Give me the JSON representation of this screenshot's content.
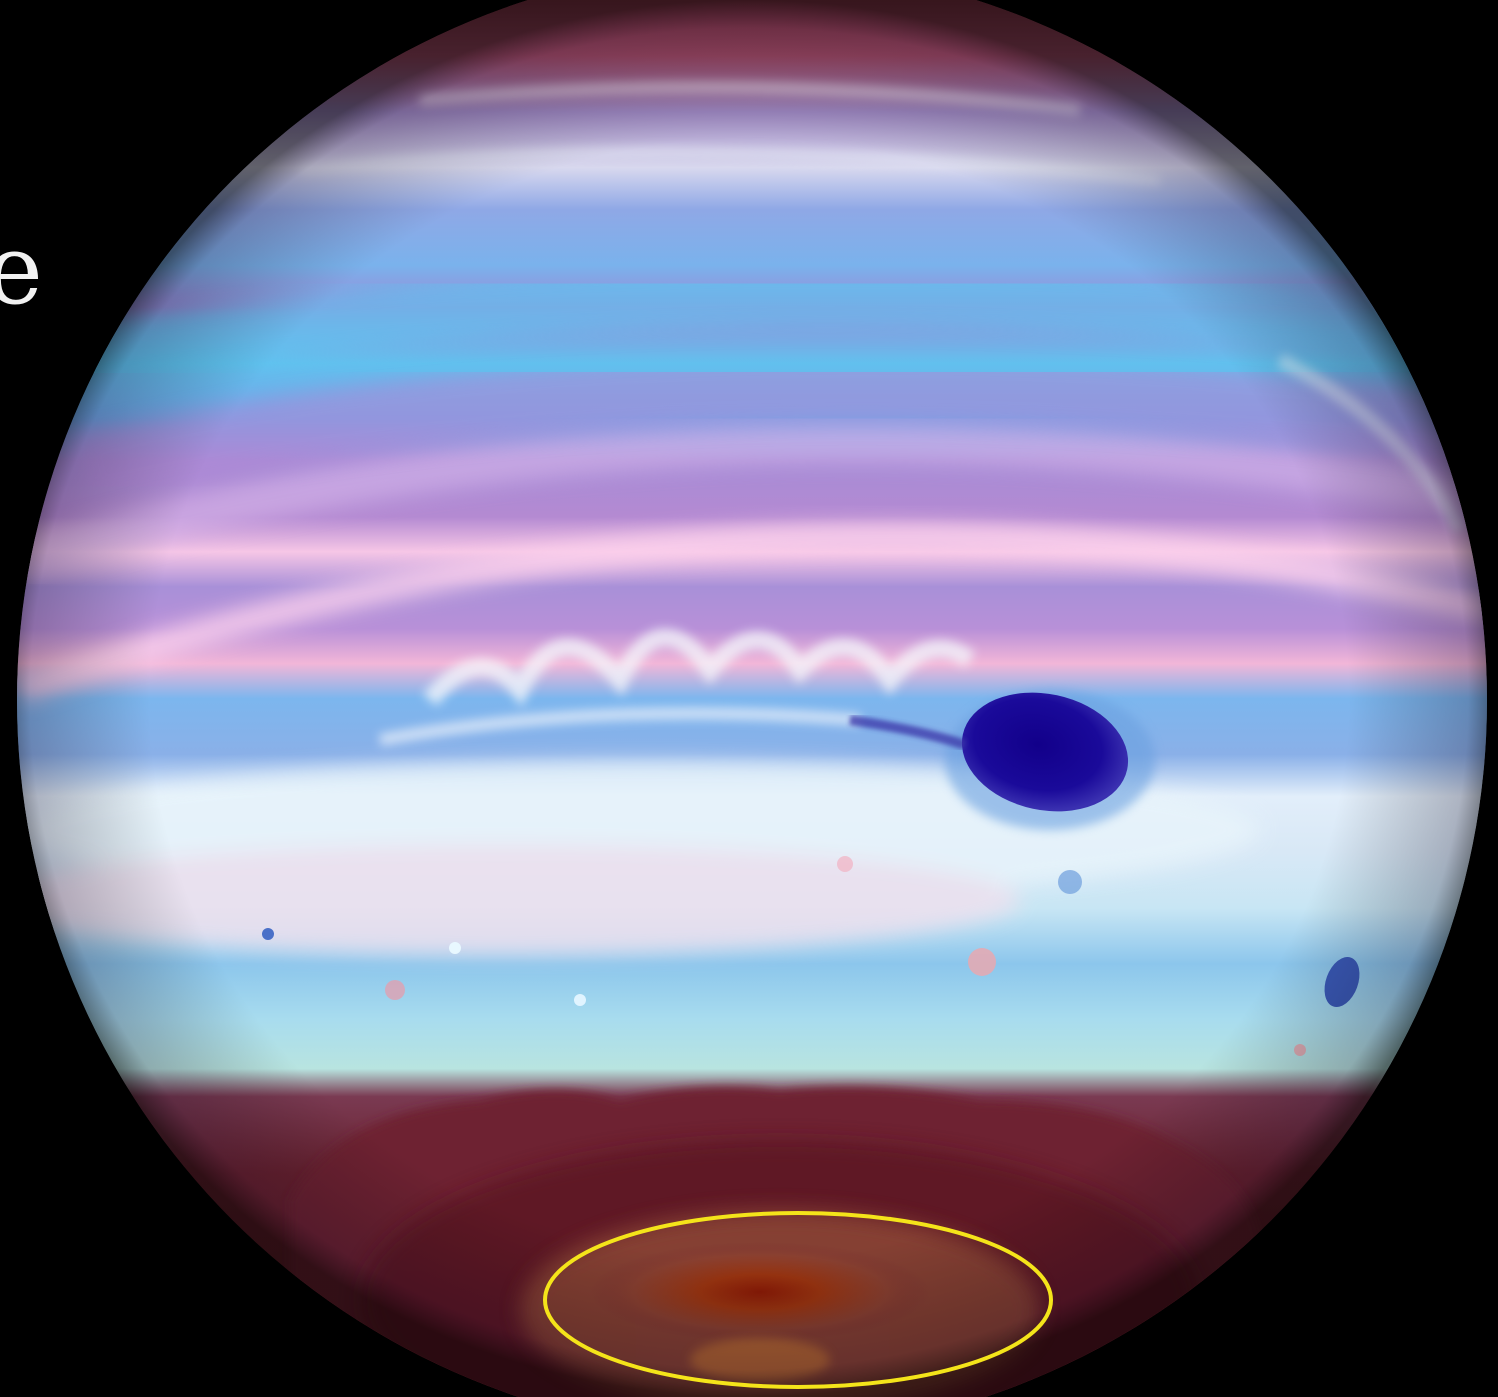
{
  "image": {
    "subject": "planet",
    "edge_text": "e",
    "annotation": {
      "shape": "ellipse",
      "color": "#f4e41a"
    },
    "colors": {
      "background": "#000000",
      "band_blue": "#5fb0e8",
      "band_violet": "#a07ad0",
      "band_pink": "#f0b0d8",
      "band_pale": "#dff4fb",
      "dark_spot": "#1a0a8a",
      "polar_cap": "#6a2020",
      "polar_core": "#9a2a0a"
    }
  }
}
